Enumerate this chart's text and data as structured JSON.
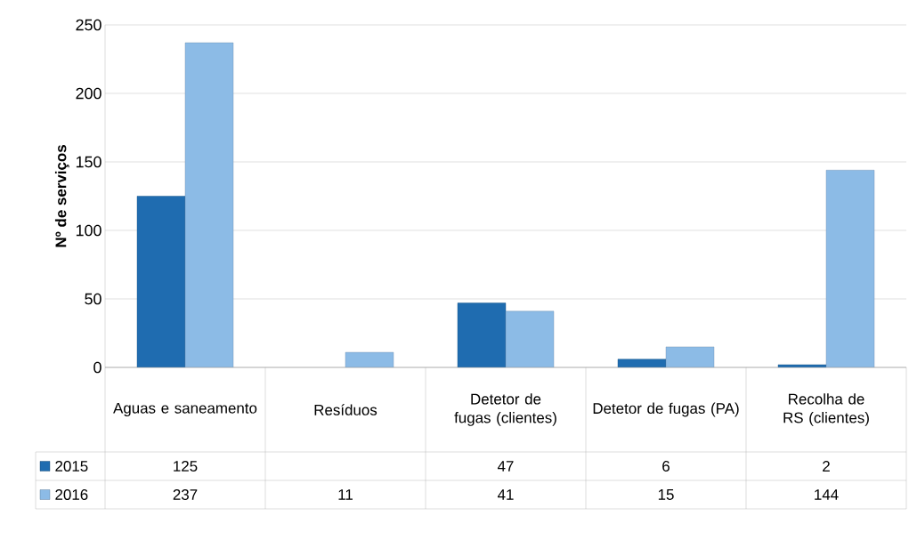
{
  "chart_data": {
    "type": "bar",
    "ylabel": "Nº de serviços",
    "categories": [
      "Aguas e saneamento",
      "Resíduos",
      "Detetor de fugas (clientes)",
      "Detetor de fugas (PA)",
      "Recolha de RS (clientes)"
    ],
    "series": [
      {
        "name": "2015",
        "color": "#1f6cb0",
        "values": [
          125,
          null,
          47,
          6,
          2
        ]
      },
      {
        "name": "2016",
        "color": "#8cbbe6",
        "values": [
          237,
          11,
          41,
          15,
          144
        ]
      }
    ],
    "ylim": [
      0,
      250
    ],
    "yticks": [
      0,
      50,
      100,
      150,
      200,
      250
    ],
    "grid": "y",
    "legend": "bottom",
    "data_labels": true
  }
}
